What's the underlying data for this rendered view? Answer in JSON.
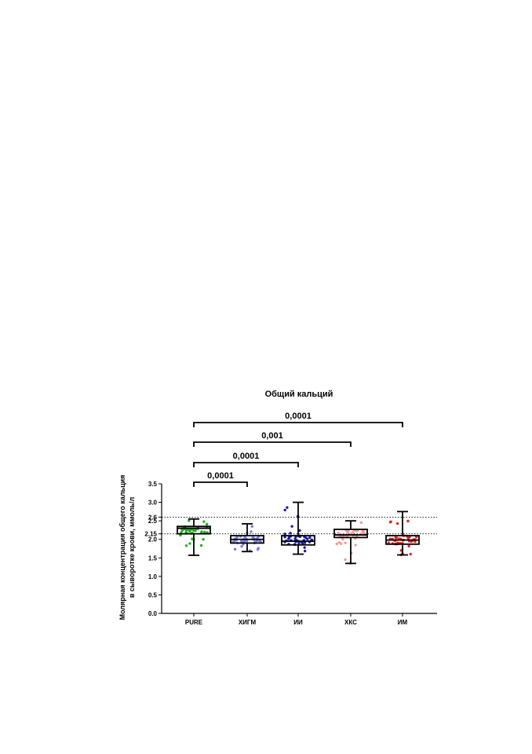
{
  "chart_data": {
    "type": "box",
    "title": "Общий кальций",
    "ylabel_line1": "Молярная концентрация общего кальция",
    "ylabel_line2": "в сыворотке крови, ммоль/л",
    "xlabel": "",
    "ylim": [
      0,
      3.5
    ],
    "yticks": [
      "0.0",
      "0.5",
      "1.0",
      "1.5",
      "2.0",
      "2.5",
      "3.0",
      "3.5"
    ],
    "extra_ticks": [
      {
        "value": 2.15,
        "label": "2.15"
      },
      {
        "value": 2.6,
        "label": "2.6"
      }
    ],
    "reference_lines": [
      2.15,
      2.6
    ],
    "categories": [
      "PURE",
      "ХИГМ",
      "ИИ",
      "ХКС",
      "ИМ"
    ],
    "colors": [
      "#1fb21f",
      "#7b7be0",
      "#1a1aa8",
      "#f29a9a",
      "#e82020"
    ],
    "boxes": [
      {
        "name": "PURE",
        "min": 1.57,
        "q1": 2.15,
        "median": 2.3,
        "q3": 2.35,
        "max": 2.55
      },
      {
        "name": "ХИГМ",
        "min": 1.67,
        "q1": 1.9,
        "median": 2.0,
        "q3": 2.1,
        "max": 2.42
      },
      {
        "name": "ИИ",
        "min": 1.6,
        "q1": 1.85,
        "median": 1.95,
        "q3": 2.1,
        "max": 3.0
      },
      {
        "name": "ХКС",
        "min": 1.35,
        "q1": 2.05,
        "median": 2.12,
        "q3": 2.27,
        "max": 2.5
      },
      {
        "name": "ИМ",
        "min": 1.58,
        "q1": 1.87,
        "median": 1.98,
        "q3": 2.1,
        "max": 2.75
      }
    ],
    "comparisons": [
      {
        "from": "PURE",
        "to": "ХИГМ",
        "p": "0,0001"
      },
      {
        "from": "PURE",
        "to": "ИИ",
        "p": "0,0001"
      },
      {
        "from": "PURE",
        "to": "ХКС",
        "p": "0,001"
      },
      {
        "from": "PURE",
        "to": "ИМ",
        "p": "0,0001"
      }
    ]
  }
}
